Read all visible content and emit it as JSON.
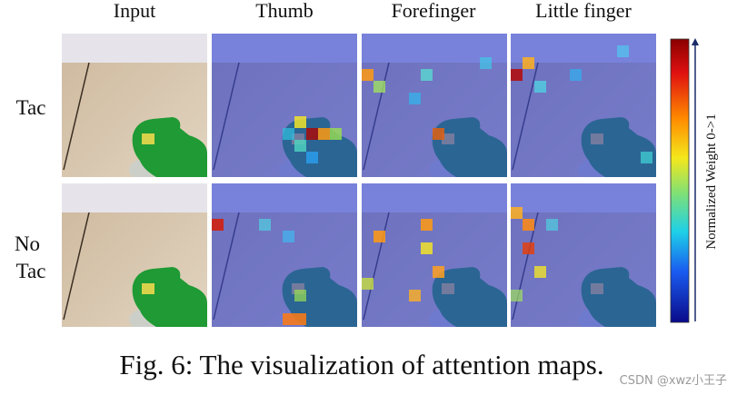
{
  "columns": [
    "Input",
    "Thumb",
    "Forefinger",
    "Little finger"
  ],
  "row_labels": [
    [
      "Tac"
    ],
    [
      "No",
      "Tac"
    ]
  ],
  "colorbar": {
    "label": "Normalized Weight 0->1"
  },
  "caption": "Fig. 6: The visualization of attention maps.",
  "watermark": "CSDN @xwz小王子"
}
